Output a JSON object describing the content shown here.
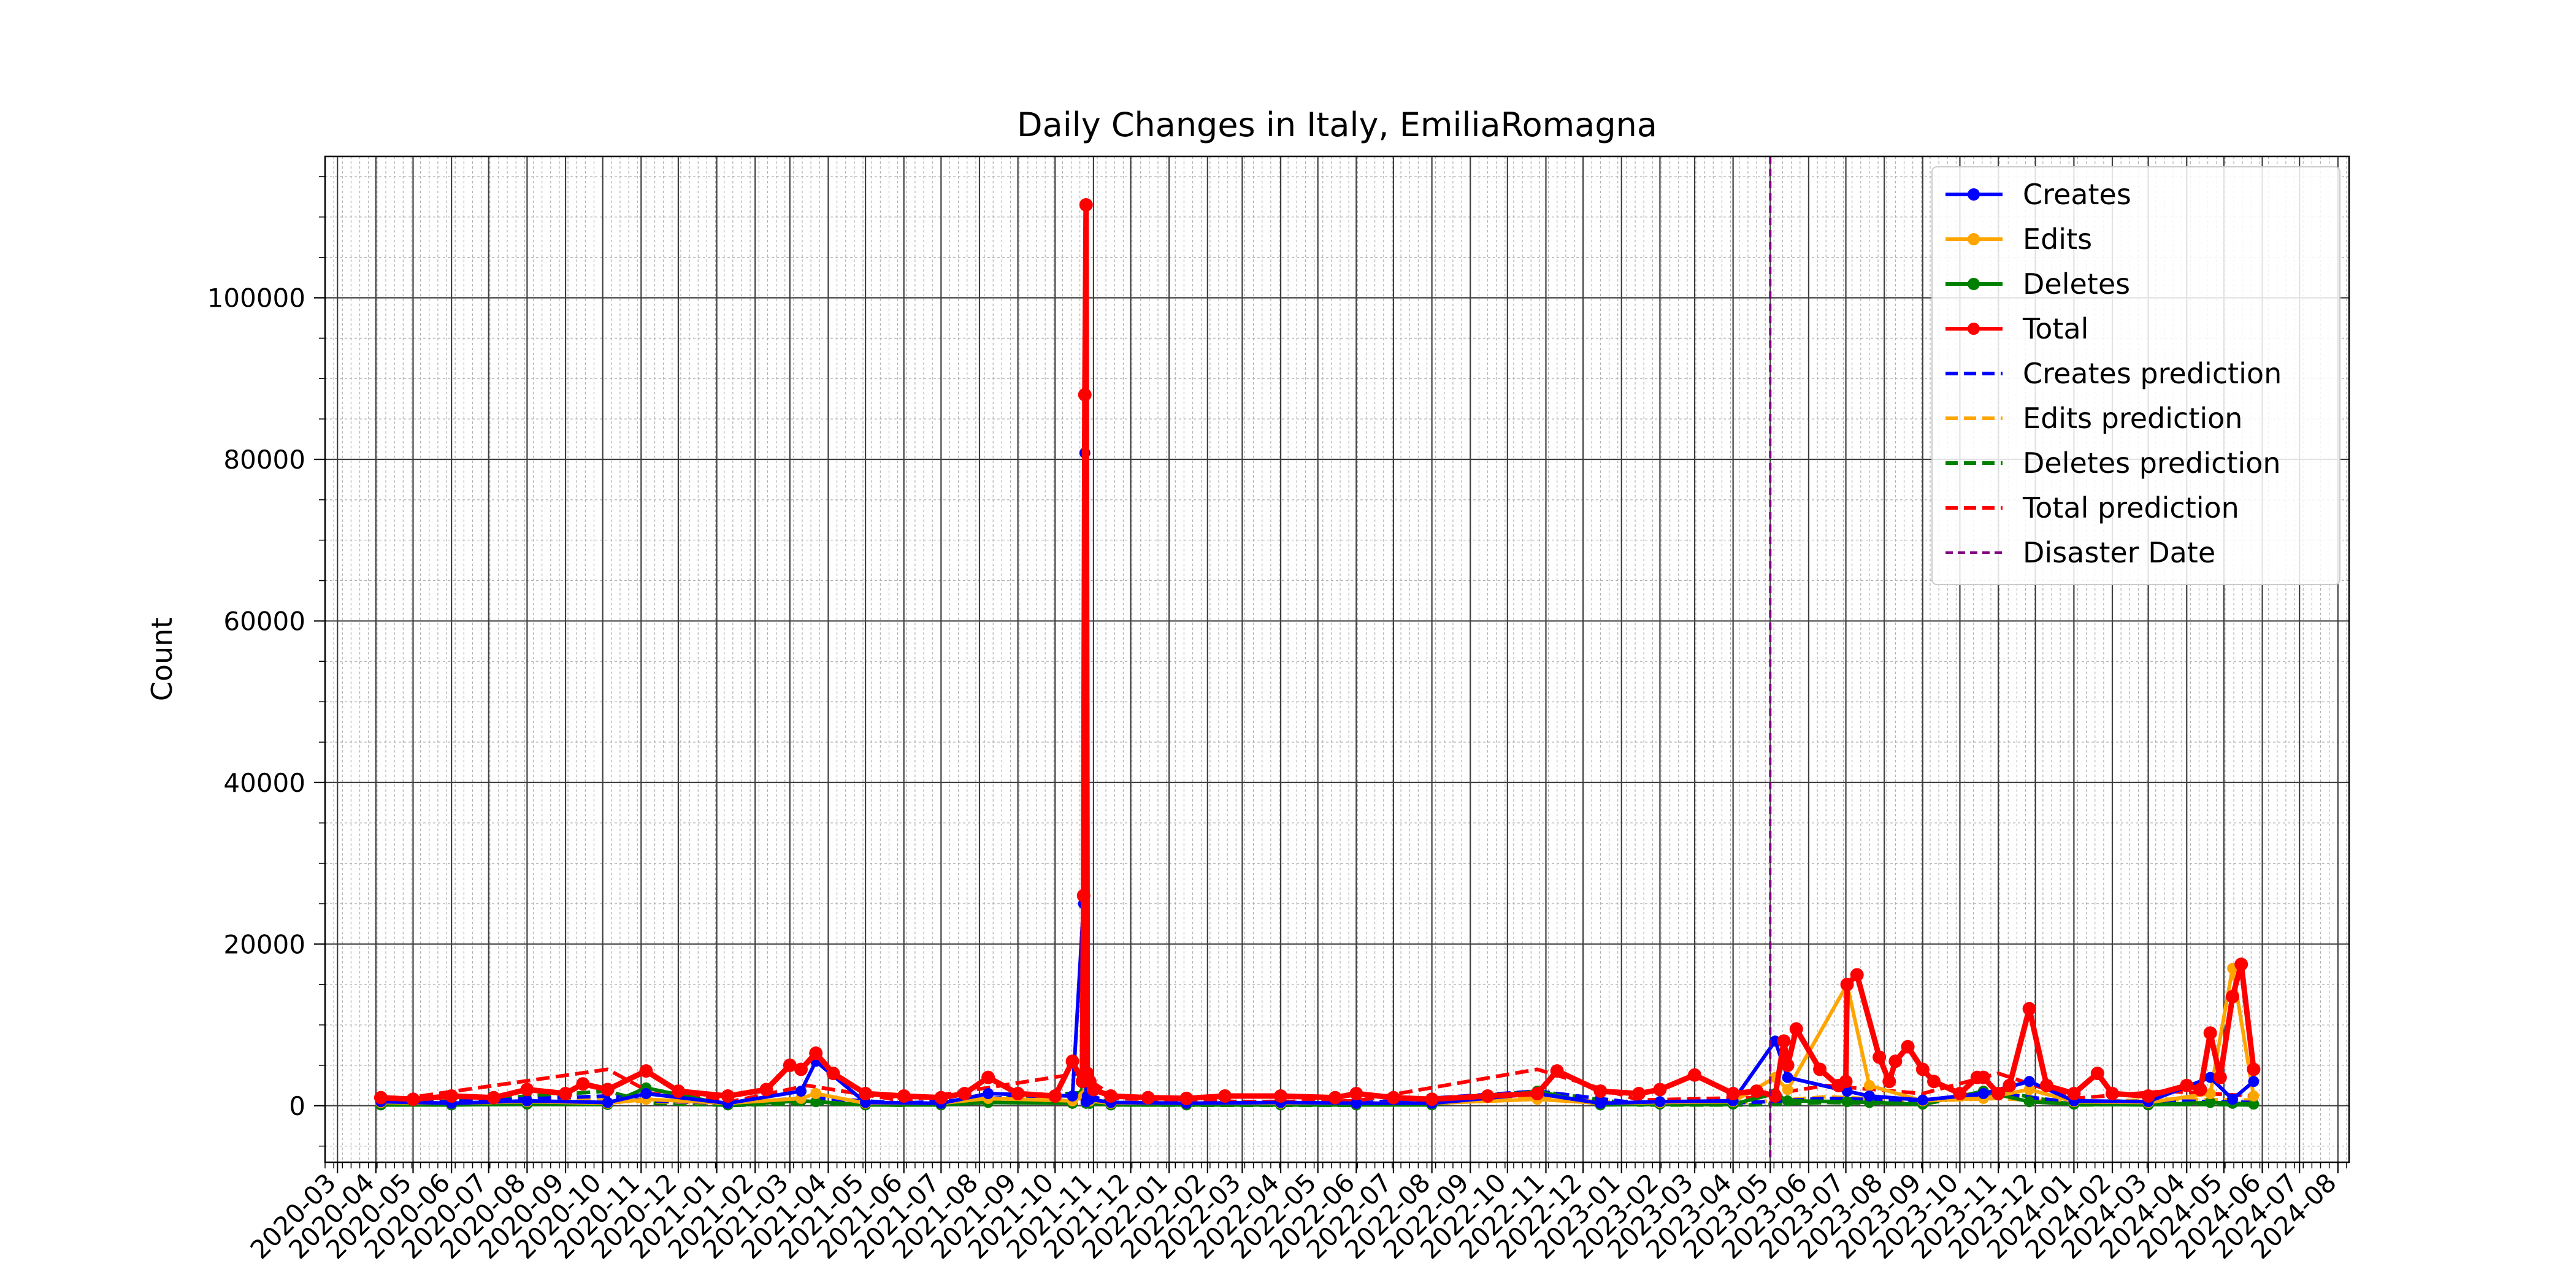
{
  "chart_data": {
    "type": "line",
    "title": "Daily Changes in Italy, EmiliaRomagna",
    "xlabel": "",
    "ylabel": "Count",
    "x_axis_type": "date",
    "xlim": [
      "2020-02-20",
      "2024-08-10"
    ],
    "ylim": [
      -7000,
      117500
    ],
    "y_ticks": [
      0,
      20000,
      40000,
      60000,
      80000,
      100000
    ],
    "x_tick_labels": [
      "2020-03",
      "2020-04",
      "2020-05",
      "2020-06",
      "2020-07",
      "2020-08",
      "2020-09",
      "2020-10",
      "2020-11",
      "2020-12",
      "2021-01",
      "2021-02",
      "2021-03",
      "2021-04",
      "2021-05",
      "2021-06",
      "2021-07",
      "2021-08",
      "2021-09",
      "2021-10",
      "2021-11",
      "2021-12",
      "2022-01",
      "2022-02",
      "2022-03",
      "2022-04",
      "2022-05",
      "2022-06",
      "2022-07",
      "2022-08",
      "2022-09",
      "2022-10",
      "2022-11",
      "2022-12",
      "2023-01",
      "2023-02",
      "2023-03",
      "2023-04",
      "2023-05",
      "2023-06",
      "2023-07",
      "2023-08",
      "2023-09",
      "2023-10",
      "2023-11",
      "2023-12",
      "2024-01",
      "2024-02",
      "2024-03",
      "2024-04",
      "2024-05",
      "2024-06",
      "2024-07",
      "2024-08"
    ],
    "grid": true,
    "minor_grid": true,
    "legend_placement": "top-right",
    "disaster_date": "2023-05-01",
    "colors": {
      "Creates": "#0000ff",
      "Edits": "#ffa500",
      "Deletes": "#008000",
      "Total": "#ff0000",
      "Disaster Date": "#800080"
    },
    "legend": [
      {
        "label": "Creates",
        "color": "#0000ff",
        "style": "solid-marker"
      },
      {
        "label": "Edits",
        "color": "#ffa500",
        "style": "solid-marker"
      },
      {
        "label": "Deletes",
        "color": "#008000",
        "style": "solid-marker"
      },
      {
        "label": "Total",
        "color": "#ff0000",
        "style": "solid-marker"
      },
      {
        "label": "Creates prediction",
        "color": "#0000ff",
        "style": "dashed"
      },
      {
        "label": "Edits prediction",
        "color": "#ffa500",
        "style": "dashed"
      },
      {
        "label": "Deletes prediction",
        "color": "#008000",
        "style": "dashed"
      },
      {
        "label": "Total prediction",
        "color": "#ff0000",
        "style": "dashed"
      },
      {
        "label": "Disaster Date",
        "color": "#800080",
        "style": "dashed-thin"
      }
    ],
    "series": [
      {
        "name": "Creates",
        "x": [
          "2020-04-05",
          "2020-06-01",
          "2020-08-01",
          "2020-10-05",
          "2020-11-05",
          "2021-01-10",
          "2021-03-10",
          "2021-03-22",
          "2021-05-01",
          "2021-07-01",
          "2021-08-08",
          "2021-10-15",
          "2021-10-24",
          "2021-10-25",
          "2021-10-26",
          "2021-10-27",
          "2021-10-29",
          "2021-11-15",
          "2022-01-15",
          "2022-04-01",
          "2022-06-01",
          "2022-08-01",
          "2022-10-25",
          "2022-12-15",
          "2023-02-01",
          "2023-04-01",
          "2023-05-05",
          "2023-05-15",
          "2023-07-02",
          "2023-07-20",
          "2023-09-01",
          "2023-10-20",
          "2023-11-26",
          "2024-01-01",
          "2024-03-01",
          "2024-04-20",
          "2024-05-08",
          "2024-05-25"
        ],
        "y": [
          500,
          300,
          600,
          400,
          1500,
          300,
          1800,
          5500,
          400,
          300,
          1500,
          1200,
          25000,
          80800,
          500,
          1200,
          800,
          400,
          300,
          400,
          300,
          300,
          1500,
          300,
          500,
          600,
          8000,
          3500,
          1800,
          1200,
          700,
          1500,
          3000,
          600,
          500,
          3500,
          800,
          3000
        ]
      },
      {
        "name": "Edits",
        "x": [
          "2020-04-05",
          "2020-06-01",
          "2020-08-01",
          "2020-10-05",
          "2020-11-05",
          "2021-01-10",
          "2021-03-10",
          "2021-03-22",
          "2021-05-01",
          "2021-07-01",
          "2021-08-08",
          "2021-10-15",
          "2021-10-24",
          "2021-10-25",
          "2021-10-26",
          "2021-10-27",
          "2021-10-29",
          "2021-11-15",
          "2022-01-15",
          "2022-04-01",
          "2022-06-01",
          "2022-08-01",
          "2022-10-25",
          "2022-12-15",
          "2023-02-01",
          "2023-04-01",
          "2023-05-05",
          "2023-05-15",
          "2023-07-02",
          "2023-07-20",
          "2023-09-01",
          "2023-10-20",
          "2023-11-26",
          "2024-01-01",
          "2024-03-01",
          "2024-04-20",
          "2024-05-08",
          "2024-05-25"
        ],
        "y": [
          400,
          300,
          500,
          300,
          800,
          300,
          900,
          1500,
          300,
          300,
          900,
          600,
          1200,
          3000,
          500,
          800,
          600,
          300,
          300,
          300,
          300,
          300,
          800,
          300,
          400,
          500,
          3500,
          2000,
          15000,
          2500,
          600,
          900,
          2000,
          500,
          400,
          1500,
          17000,
          1200
        ]
      },
      {
        "name": "Deletes",
        "x": [
          "2020-04-05",
          "2020-06-01",
          "2020-08-01",
          "2020-10-05",
          "2020-11-05",
          "2021-01-10",
          "2021-03-10",
          "2021-03-22",
          "2021-05-01",
          "2021-07-01",
          "2021-08-08",
          "2021-10-15",
          "2021-10-24",
          "2021-10-25",
          "2021-10-26",
          "2021-10-27",
          "2021-10-29",
          "2021-11-15",
          "2022-01-15",
          "2022-04-01",
          "2022-06-01",
          "2022-08-01",
          "2022-10-25",
          "2022-12-15",
          "2023-02-01",
          "2023-04-01",
          "2023-05-05",
          "2023-05-15",
          "2023-07-02",
          "2023-07-20",
          "2023-09-01",
          "2023-10-20",
          "2023-11-26",
          "2024-01-01",
          "2024-03-01",
          "2024-04-20",
          "2024-05-08",
          "2024-05-25"
        ],
        "y": [
          100,
          100,
          200,
          150,
          2200,
          100,
          600,
          500,
          100,
          100,
          400,
          300,
          1500,
          2500,
          300,
          500,
          300,
          100,
          100,
          100,
          100,
          100,
          1800,
          100,
          200,
          200,
          1500,
          600,
          500,
          400,
          200,
          1800,
          500,
          200,
          100,
          400,
          300,
          200
        ]
      },
      {
        "name": "Total",
        "x": [
          "2020-04-05",
          "2020-05-01",
          "2020-06-01",
          "2020-07-05",
          "2020-08-01",
          "2020-09-01",
          "2020-09-15",
          "2020-10-05",
          "2020-11-05",
          "2020-12-01",
          "2021-01-10",
          "2021-02-10",
          "2021-03-01",
          "2021-03-10",
          "2021-03-22",
          "2021-04-05",
          "2021-05-01",
          "2021-06-01",
          "2021-07-01",
          "2021-07-20",
          "2021-08-08",
          "2021-09-01",
          "2021-10-01",
          "2021-10-15",
          "2021-10-23",
          "2021-10-24",
          "2021-10-25",
          "2021-10-26",
          "2021-10-27",
          "2021-10-29",
          "2021-11-01",
          "2021-11-15",
          "2021-12-15",
          "2022-01-15",
          "2022-02-15",
          "2022-04-01",
          "2022-05-15",
          "2022-06-01",
          "2022-07-01",
          "2022-08-01",
          "2022-09-15",
          "2022-10-25",
          "2022-11-10",
          "2022-12-15",
          "2023-01-15",
          "2023-02-01",
          "2023-03-01",
          "2023-04-01",
          "2023-04-20",
          "2023-05-05",
          "2023-05-12",
          "2023-05-15",
          "2023-05-22",
          "2023-06-10",
          "2023-06-25",
          "2023-07-01",
          "2023-07-02",
          "2023-07-10",
          "2023-07-28",
          "2023-08-05",
          "2023-08-10",
          "2023-08-20",
          "2023-09-01",
          "2023-09-10",
          "2023-10-01",
          "2023-10-15",
          "2023-10-20",
          "2023-11-01",
          "2023-11-10",
          "2023-11-26",
          "2023-12-10",
          "2024-01-01",
          "2024-01-20",
          "2024-02-01",
          "2024-03-01",
          "2024-04-01",
          "2024-04-12",
          "2024-04-20",
          "2024-04-28",
          "2024-05-08",
          "2024-05-15",
          "2024-05-25"
        ],
        "y": [
          1000,
          800,
          1200,
          1000,
          2000,
          1500,
          2700,
          2000,
          4300,
          1800,
          1200,
          2000,
          5000,
          4500,
          6500,
          4000,
          1500,
          1200,
          1000,
          1500,
          3500,
          1500,
          1200,
          5500,
          3000,
          26000,
          88000,
          111500,
          4000,
          3000,
          2000,
          1200,
          1000,
          900,
          1200,
          1200,
          1000,
          1500,
          1000,
          800,
          1200,
          1500,
          4300,
          1800,
          1500,
          2000,
          3800,
          1500,
          1800,
          1200,
          8000,
          5000,
          9500,
          4500,
          2500,
          3000,
          15000,
          16200,
          6000,
          3000,
          5500,
          7300,
          4500,
          3000,
          1500,
          3500,
          3500,
          1500,
          2500,
          12000,
          2500,
          1500,
          4000,
          1500,
          1200,
          2500,
          2000,
          9000,
          3500,
          13500,
          17500,
          4500
        ]
      },
      {
        "name": "Creates prediction",
        "x": [
          "2020-04-05",
          "2020-10-05",
          "2020-11-10",
          "2021-01-15",
          "2021-03-15",
          "2021-06-01",
          "2021-10-20",
          "2021-11-20",
          "2022-03-01",
          "2022-06-01",
          "2022-10-25",
          "2023-01-15",
          "2023-04-15",
          "2023-06-15",
          "2023-09-01",
          "2023-11-01",
          "2024-01-01",
          "2024-03-15",
          "2024-05-25"
        ],
        "y": [
          200,
          1200,
          600,
          300,
          1000,
          300,
          1500,
          400,
          200,
          300,
          1800,
          300,
          400,
          900,
          600,
          1500,
          400,
          600,
          400
        ]
      },
      {
        "name": "Edits prediction",
        "x": [
          "2020-04-05",
          "2020-10-05",
          "2020-11-10",
          "2021-01-15",
          "2021-03-15",
          "2021-06-01",
          "2021-10-20",
          "2021-11-20",
          "2022-03-01",
          "2022-06-01",
          "2022-10-25",
          "2023-01-15",
          "2023-04-15",
          "2023-06-15",
          "2023-09-01",
          "2023-11-01",
          "2024-01-01",
          "2024-03-15",
          "2024-05-25"
        ],
        "y": [
          300,
          700,
          500,
          300,
          900,
          300,
          1200,
          400,
          300,
          300,
          900,
          300,
          400,
          1100,
          600,
          900,
          400,
          800,
          700
        ]
      },
      {
        "name": "Deletes prediction",
        "x": [
          "2020-04-05",
          "2020-10-05",
          "2020-11-10",
          "2021-01-15",
          "2021-03-15",
          "2021-06-01",
          "2021-10-20",
          "2021-11-20",
          "2022-03-01",
          "2022-06-01",
          "2022-10-25",
          "2023-01-15",
          "2023-04-15",
          "2023-06-15",
          "2023-09-01",
          "2023-11-01",
          "2024-01-01",
          "2024-03-15",
          "2024-05-25"
        ],
        "y": [
          50,
          1800,
          300,
          50,
          300,
          50,
          1600,
          100,
          50,
          50,
          1800,
          100,
          100,
          400,
          200,
          1800,
          100,
          200,
          100
        ]
      },
      {
        "name": "Total prediction",
        "x": [
          "2020-04-05",
          "2020-10-05",
          "2020-11-10",
          "2021-01-15",
          "2021-03-15",
          "2021-06-01",
          "2021-10-20",
          "2021-11-20",
          "2022-03-01",
          "2022-06-01",
          "2022-10-25",
          "2023-01-15",
          "2023-04-15",
          "2023-06-15",
          "2023-09-01",
          "2023-11-01",
          "2024-01-01",
          "2024-03-15",
          "2024-05-25"
        ],
        "y": [
          500,
          4500,
          1500,
          600,
          2500,
          600,
          4000,
          900,
          500,
          600,
          4500,
          700,
          1000,
          2500,
          1500,
          4000,
          900,
          1800,
          1200
        ]
      }
    ]
  }
}
